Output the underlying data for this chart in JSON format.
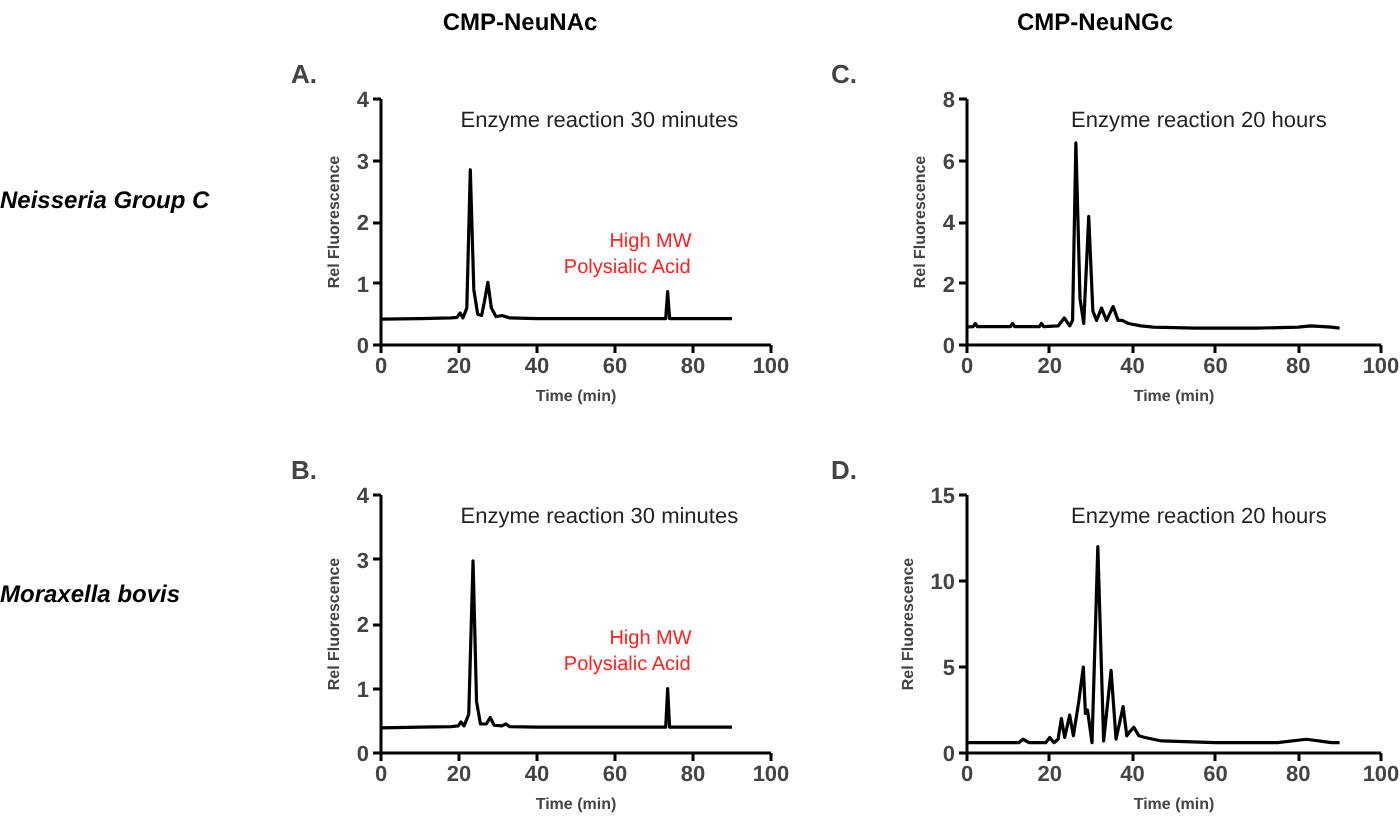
{
  "chart_data": [
    {
      "type": "line",
      "title": "A.",
      "subtitle": "Enzyme reaction 30 minutes",
      "xlabel": "Time (min)",
      "ylabel": "Rel Fluorescence",
      "xlim": [
        0,
        100
      ],
      "xticks": [
        0,
        20,
        40,
        60,
        80,
        100
      ],
      "ylim": [
        0,
        4
      ],
      "yticks": [
        0,
        1,
        2,
        3,
        4
      ],
      "grid": false,
      "annotations": [
        "CMP-NeuNAc",
        "Neisseria Group C",
        {
          "text": "High MW Polysialic Acid",
          "x": 73.5,
          "y": 0.87
        }
      ],
      "series": [
        {
          "color": "#000000",
          "x": [
            0,
            10,
            18,
            19.5,
            20.3,
            21,
            22,
            22.9,
            23.8,
            24.8,
            25.8,
            26.5,
            27.4,
            28.3,
            29.5,
            31,
            33,
            40,
            73,
            73.5,
            74,
            90
          ],
          "values": [
            0.42,
            0.43,
            0.44,
            0.45,
            0.52,
            0.44,
            0.6,
            2.85,
            0.9,
            0.5,
            0.48,
            0.7,
            1.02,
            0.6,
            0.46,
            0.48,
            0.44,
            0.43,
            0.43,
            0.87,
            0.43,
            0.43
          ]
        }
      ]
    },
    {
      "type": "line",
      "title": "C.",
      "subtitle": "Enzyme reaction 20 hours",
      "xlabel": "Time (min)",
      "ylabel": "Rel Fluorescence",
      "xlim": [
        0,
        100
      ],
      "xticks": [
        0,
        20,
        40,
        60,
        80,
        100
      ],
      "ylim": [
        0,
        8
      ],
      "yticks": [
        0,
        2,
        4,
        6,
        8
      ],
      "grid": false,
      "annotations": [
        "CMP-NeuNGc"
      ],
      "series": [
        {
          "color": "#000000",
          "x": [
            0,
            1.5,
            2,
            2.5,
            10.5,
            11,
            11.5,
            17.5,
            18,
            18.5,
            22,
            23.5,
            24.8,
            25.5,
            26.3,
            27.3,
            28.2,
            29.4,
            30.4,
            31.3,
            32.5,
            33.7,
            35.3,
            36.5,
            37.5,
            39,
            42,
            45,
            55,
            70,
            80,
            83,
            88,
            90
          ],
          "values": [
            0.59,
            0.6,
            0.7,
            0.6,
            0.6,
            0.7,
            0.6,
            0.6,
            0.7,
            0.6,
            0.62,
            0.88,
            0.62,
            0.8,
            6.57,
            1.5,
            0.7,
            4.18,
            1.1,
            0.8,
            1.2,
            0.8,
            1.25,
            0.8,
            0.8,
            0.7,
            0.62,
            0.58,
            0.55,
            0.55,
            0.58,
            0.62,
            0.58,
            0.55
          ]
        }
      ]
    },
    {
      "type": "line",
      "title": "B.",
      "subtitle": "Enzyme reaction 30 minutes",
      "xlabel": "Time (min)",
      "ylabel": "Rel Fluorescence",
      "xlim": [
        0,
        100
      ],
      "xticks": [
        0,
        20,
        40,
        60,
        80,
        100
      ],
      "ylim": [
        0,
        4
      ],
      "yticks": [
        0,
        1,
        2,
        3,
        4
      ],
      "grid": false,
      "annotations": [
        "Moraxella bovis",
        {
          "text": "High MW Polysialic Acid",
          "x": 73.5,
          "y": 1.0
        }
      ],
      "series": [
        {
          "color": "#000000",
          "x": [
            0,
            10,
            18,
            19.8,
            20.5,
            21.3,
            22.5,
            23.6,
            24.5,
            25.5,
            27,
            28,
            29,
            31,
            32,
            33,
            40,
            73,
            73.5,
            74,
            90
          ],
          "values": [
            0.39,
            0.4,
            0.41,
            0.42,
            0.48,
            0.42,
            0.6,
            2.98,
            0.8,
            0.45,
            0.45,
            0.55,
            0.43,
            0.42,
            0.45,
            0.41,
            0.4,
            0.4,
            1.0,
            0.4,
            0.4
          ]
        }
      ]
    },
    {
      "type": "line",
      "title": "D.",
      "subtitle": "Enzyme reaction 20 hours",
      "xlabel": "Time (min)",
      "ylabel": "Rel Fluorescence",
      "xlim": [
        0,
        100
      ],
      "xticks": [
        0,
        20,
        40,
        60,
        80,
        100
      ],
      "ylim": [
        0,
        15
      ],
      "yticks": [
        0,
        5,
        10,
        15
      ],
      "grid": false,
      "series": [
        {
          "color": "#000000",
          "x": [
            0,
            10,
            12.5,
            13.5,
            15,
            19,
            20,
            21,
            22,
            22.8,
            23.6,
            24.8,
            25.7,
            27,
            28.1,
            28.6,
            29.1,
            30.2,
            31.6,
            33,
            34.8,
            36,
            37.7,
            38.6,
            39.2,
            40.3,
            41.5,
            43,
            47,
            60,
            75,
            82,
            88,
            90
          ],
          "values": [
            0.6,
            0.6,
            0.6,
            0.8,
            0.6,
            0.6,
            0.9,
            0.6,
            0.8,
            2.0,
            0.9,
            2.2,
            1.0,
            3.0,
            5.0,
            2.3,
            2.5,
            0.6,
            12.0,
            0.7,
            4.8,
            0.8,
            2.7,
            1.0,
            1.2,
            1.5,
            1.0,
            0.9,
            0.7,
            0.6,
            0.6,
            0.8,
            0.6,
            0.6
          ]
        }
      ]
    }
  ]
}
